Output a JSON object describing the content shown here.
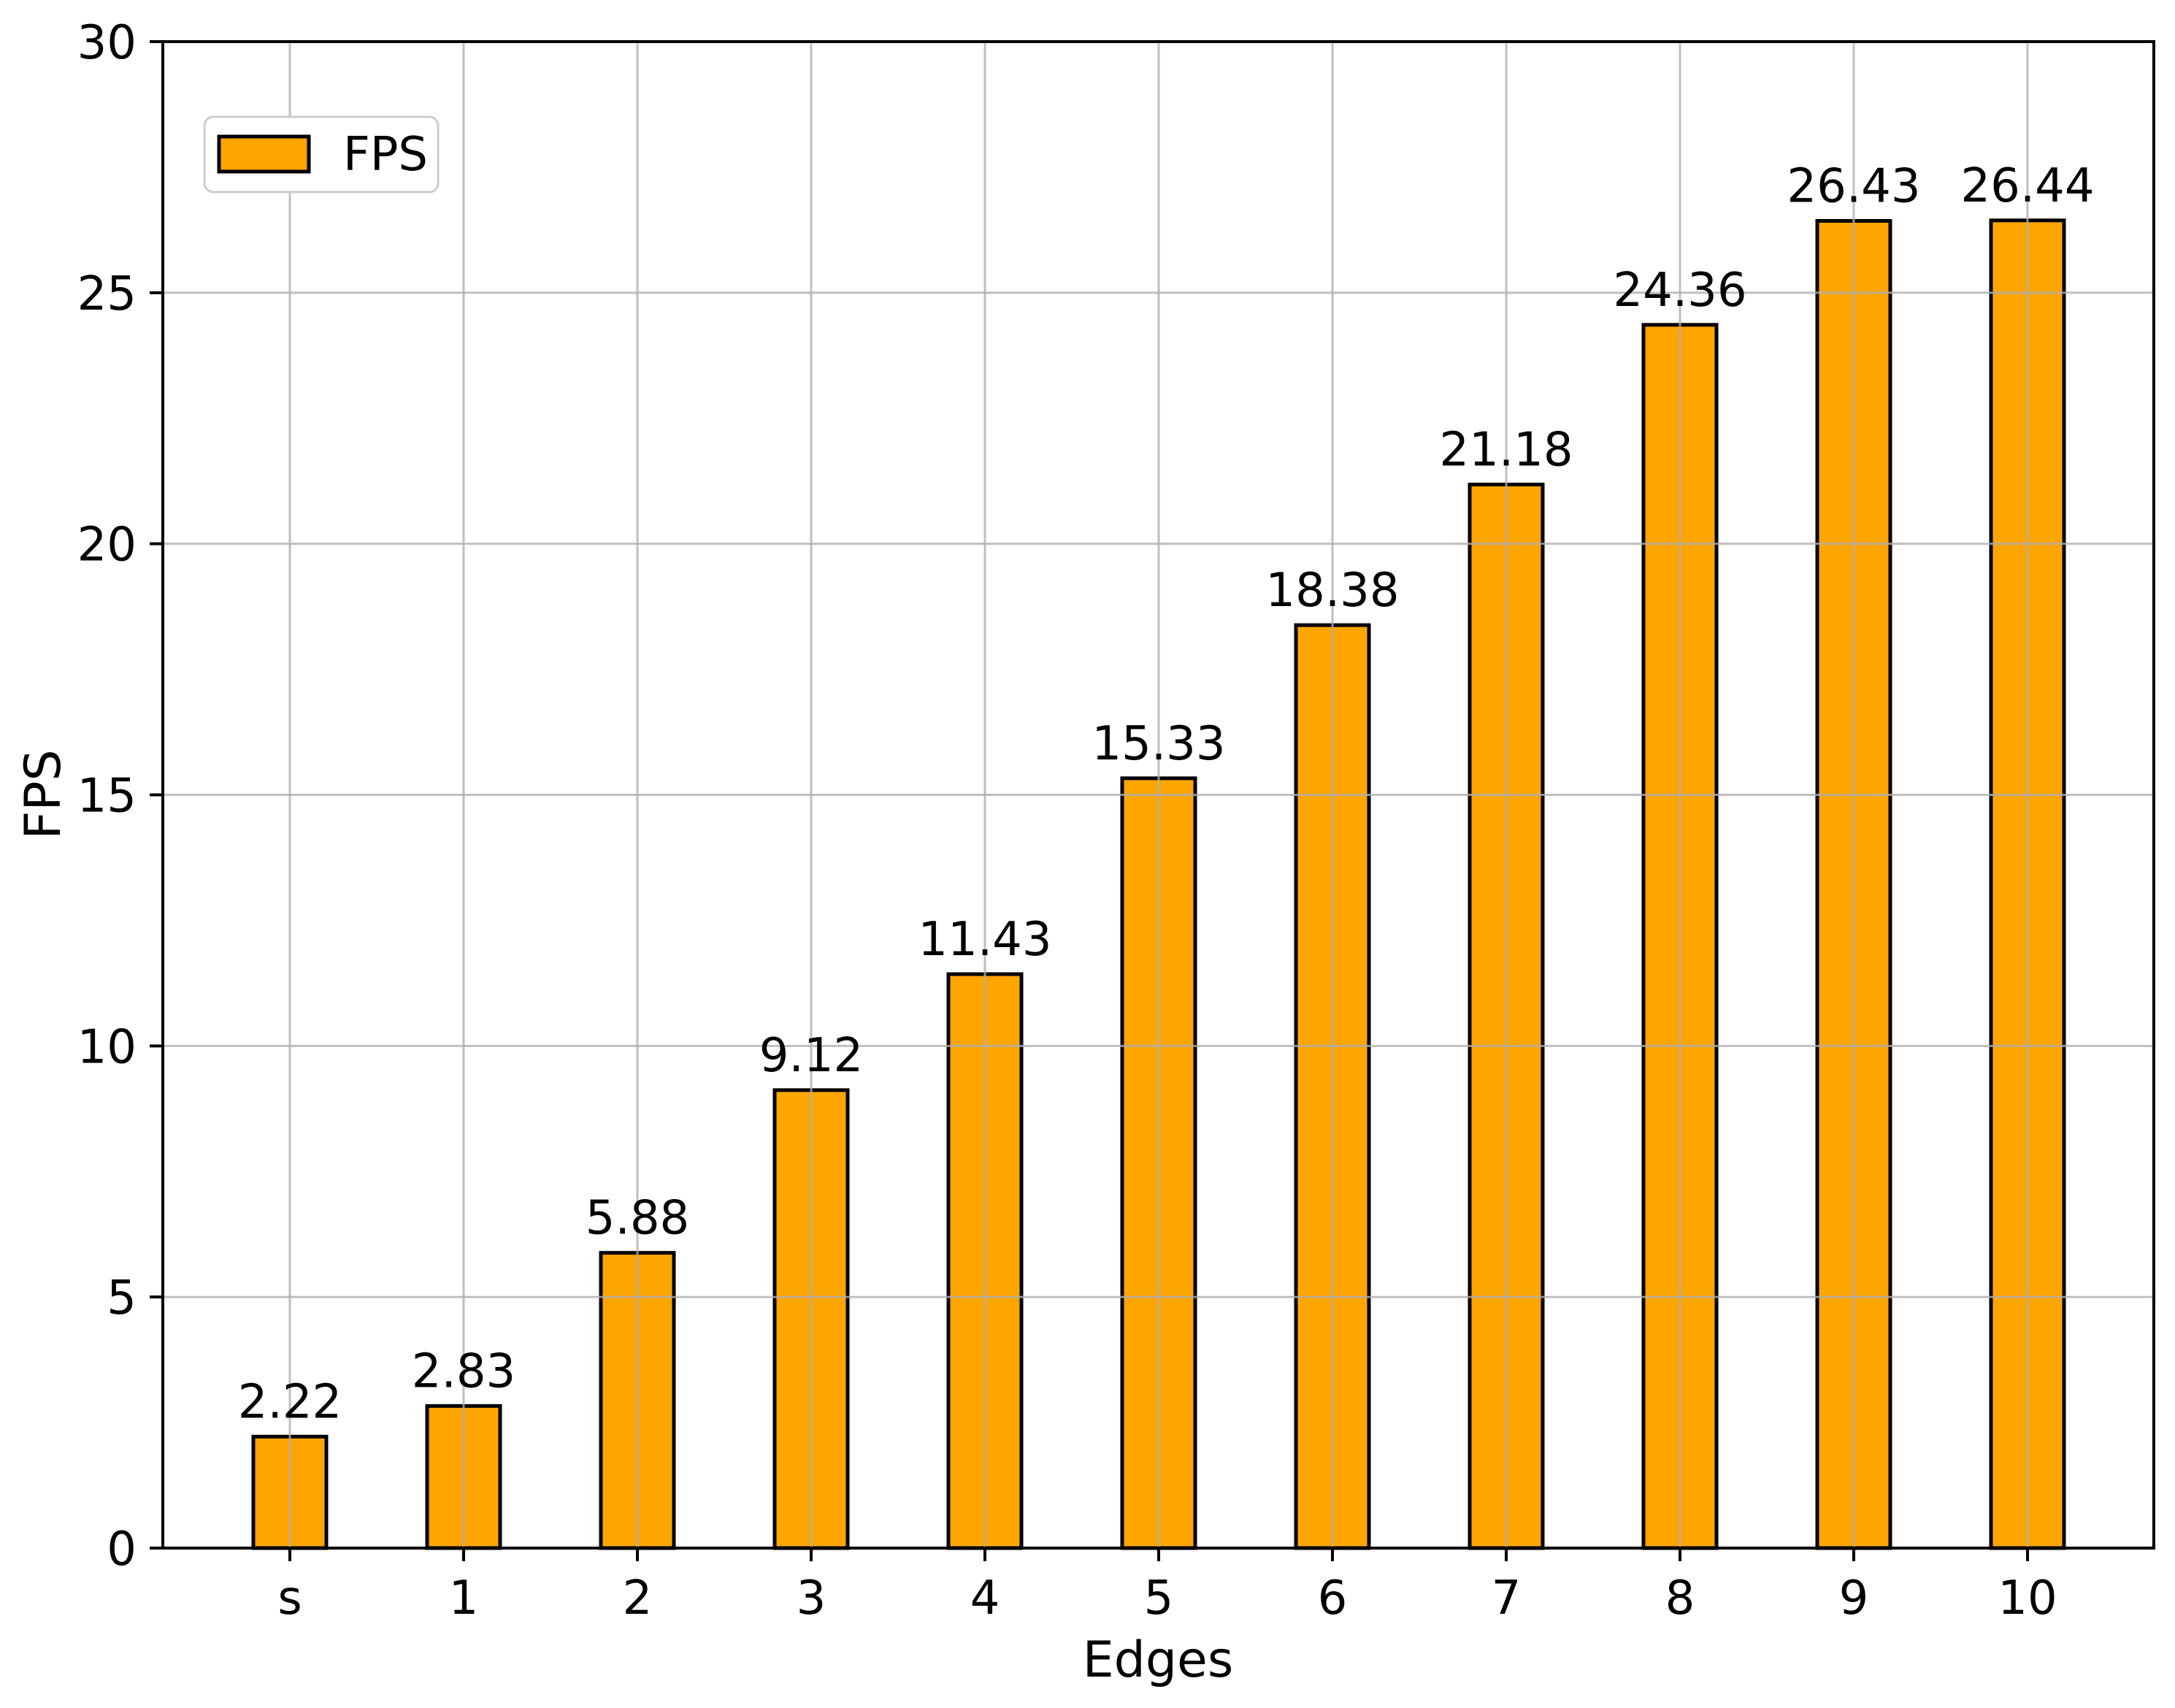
{
  "chart_data": {
    "type": "bar",
    "title": "",
    "categories": [
      "s",
      "1",
      "2",
      "3",
      "4",
      "5",
      "6",
      "7",
      "8",
      "9",
      "10"
    ],
    "series": [
      {
        "name": "FPS",
        "values": [
          2.22,
          2.83,
          5.88,
          9.12,
          11.43,
          15.33,
          18.38,
          21.18,
          24.36,
          26.43,
          26.44
        ]
      }
    ],
    "value_labels": [
      "2.22",
      "2.83",
      "5.88",
      "9.12",
      "11.43",
      "15.33",
      "18.38",
      "21.18",
      "24.36",
      "26.43",
      "26.44"
    ],
    "xlabel": "Edges",
    "ylabel": "FPS",
    "ylim": [
      0,
      30
    ],
    "yticks": [
      "0",
      "5",
      "10",
      "15",
      "20",
      "25",
      "30"
    ],
    "grid": "on",
    "legend": {
      "position": "upper left",
      "label": "FPS"
    },
    "colors": {
      "bar_fill": "#FFA500",
      "bar_edge": "#000000",
      "grid": "#B0B0B0",
      "axis": "#000000",
      "text": "#000000",
      "legend_border": "#CCCCCC",
      "background": "#FFFFFF"
    }
  }
}
